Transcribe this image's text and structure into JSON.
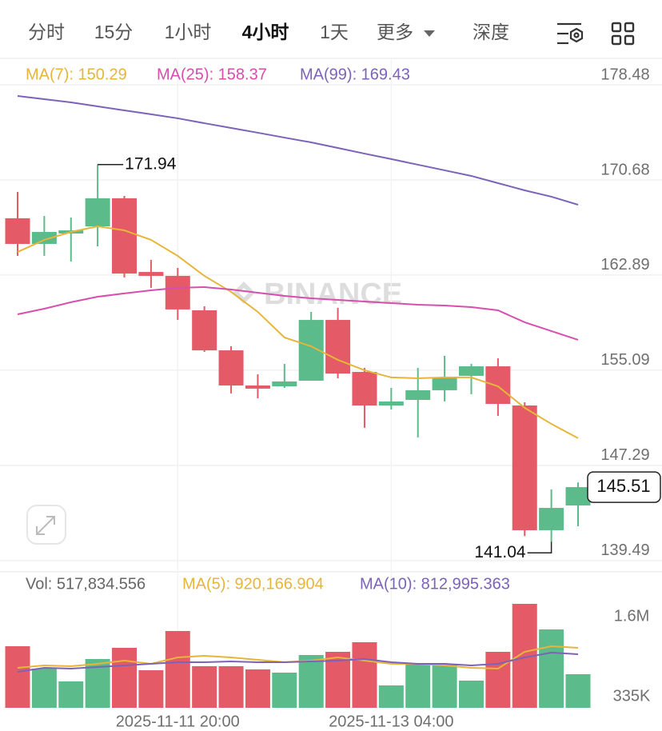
{
  "toolbar": {
    "tabs": [
      "分时",
      "15分",
      "1小时",
      "4小时",
      "1天",
      "更多",
      "深度"
    ],
    "active": 3
  },
  "watermark": "BINANCE",
  "chart_data": [
    {
      "type": "candlestick",
      "categories": [
        null,
        null,
        null,
        null,
        null,
        null,
        "2025-11-11 20:00",
        null,
        null,
        null,
        null,
        null,
        null,
        null,
        "2025-11-13 04:00",
        null,
        null,
        null,
        null,
        null,
        null,
        null
      ],
      "open": [
        167.54,
        165.44,
        166.29,
        166.88,
        169.18,
        163.14,
        162.82,
        160.0,
        156.72,
        153.84,
        153.77,
        154.23,
        159.21,
        154.95,
        152.2,
        152.66,
        153.45,
        154.63,
        155.41,
        152.2,
        141.98,
        144.01
      ],
      "high": [
        169.7,
        167.73,
        167.6,
        171.94,
        169.37,
        164.13,
        163.47,
        160.33,
        157.05,
        154.76,
        155.61,
        159.87,
        160.2,
        155.28,
        153.64,
        155.28,
        156.27,
        155.61,
        156.07,
        152.46,
        145.32,
        145.9
      ],
      "low": [
        164.46,
        164.46,
        164.0,
        165.24,
        162.69,
        161.84,
        159.21,
        156.59,
        153.19,
        152.79,
        153.64,
        154.23,
        154.43,
        150.37,
        151.87,
        149.58,
        152.53,
        153.12,
        151.35,
        141.5,
        141.04,
        142.3
      ],
      "close": [
        165.44,
        166.42,
        166.55,
        169.18,
        163.01,
        162.82,
        160.07,
        156.72,
        153.84,
        153.58,
        154.17,
        159.21,
        154.82,
        152.2,
        152.53,
        153.45,
        154.5,
        155.41,
        152.33,
        141.98,
        143.81,
        145.51
      ],
      "up_color": "#5cbb8a",
      "down_color": "#e45a66",
      "ylim": [
        138.57,
        180.51
      ],
      "yticks": [
        178.48,
        170.68,
        162.89,
        155.09,
        147.29,
        139.49
      ],
      "grid": true,
      "series": [
        {
          "name": "MA(7): 150.29",
          "color": "#e6b53a",
          "values": [
            164.78,
            165.77,
            166.42,
            166.88,
            166.55,
            165.77,
            164.46,
            162.82,
            161.51,
            159.87,
            157.77,
            157.05,
            155.94,
            155.09,
            154.5,
            154.43,
            154.5,
            154.5,
            153.77,
            152.01,
            150.69,
            149.52
          ]
        },
        {
          "name": "MA(25): 158.37",
          "color": "#d64fae",
          "values": [
            159.67,
            160.13,
            160.66,
            161.11,
            161.38,
            161.64,
            161.84,
            161.9,
            161.7,
            161.44,
            161.18,
            160.98,
            160.85,
            160.72,
            160.59,
            160.46,
            160.39,
            160.26,
            160.0,
            159.02,
            158.3,
            157.58
          ]
        },
        {
          "name": "MA(99): 169.43",
          "color": "#7c62b8",
          "values": [
            177.56,
            177.3,
            177.04,
            176.71,
            176.38,
            176.06,
            175.73,
            175.33,
            174.94,
            174.55,
            174.15,
            173.76,
            173.3,
            172.84,
            172.39,
            171.93,
            171.47,
            171.01,
            170.42,
            169.83,
            169.31,
            168.65
          ]
        }
      ]
    },
    {
      "type": "bar",
      "title": "Vol: 517,834.556",
      "values": [
        1131950,
        777750,
        575350,
        929550,
        1106650,
        752450,
        1372300,
        815700,
        815700,
        765100,
        714500,
        992800,
        1043400,
        1195200,
        512100,
        853650,
        853650,
        588000,
        1043400,
        1802400,
        1397600,
        689200
      ],
      "ylim": [
        157900,
        1865650
      ],
      "yticks": [
        {
          "value": 1600000,
          "label": "1.6M"
        },
        {
          "value": 335000,
          "label": "335K"
        }
      ],
      "series": [
        {
          "name": "MA(5): 920,166.904",
          "color": "#e6b53a",
          "values": [
            790400,
            828350,
            815700,
            853650,
            904250,
            853650,
            954850,
            980150,
            954850,
            916900,
            879000,
            904250,
            954850,
            904250,
            853650,
            853650,
            828350,
            790400,
            777750,
            1043400,
            1131950,
            1106650
          ]
        },
        {
          "name": "MA(10): 812,995.363",
          "color": "#7c62b8",
          "values": [
            727150,
            790400,
            777750,
            803050,
            828350,
            853650,
            879000,
            879000,
            891650,
            879000,
            879000,
            891650,
            904250,
            929550,
            879000,
            853650,
            853650,
            828350,
            853650,
            954850,
            1030750,
            1005450
          ]
        }
      ]
    }
  ]
}
